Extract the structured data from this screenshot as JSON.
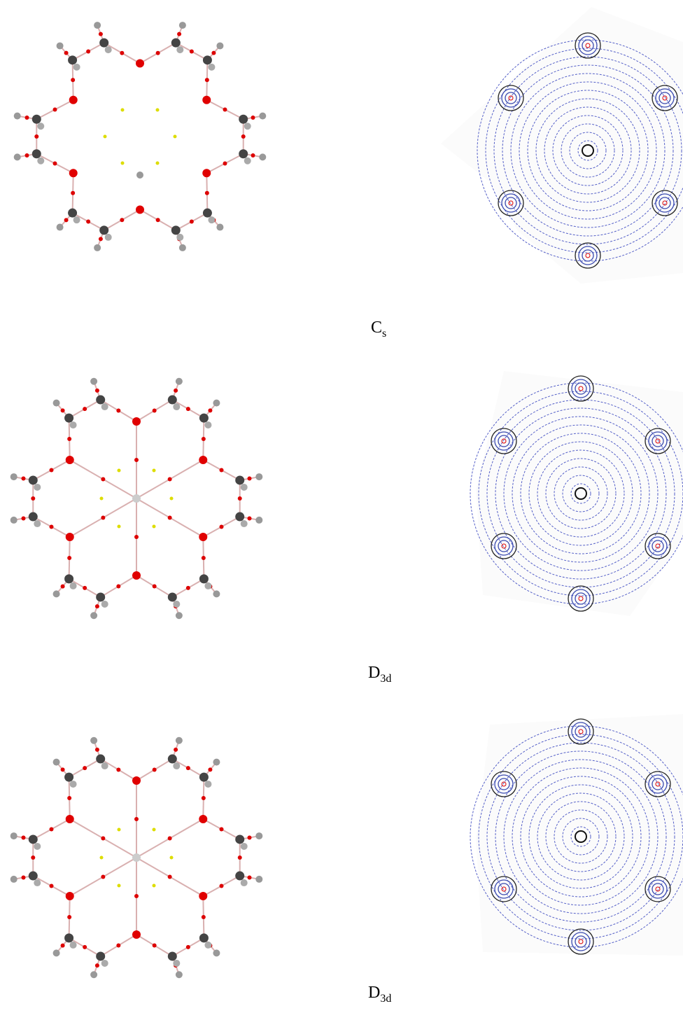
{
  "panels": [
    {
      "label": {
        "main": "C",
        "sub": "s"
      }
    },
    {
      "label": {
        "main": "D",
        "sub": "3d"
      }
    },
    {
      "label": {
        "main": "D",
        "sub": "3d"
      }
    }
  ]
}
